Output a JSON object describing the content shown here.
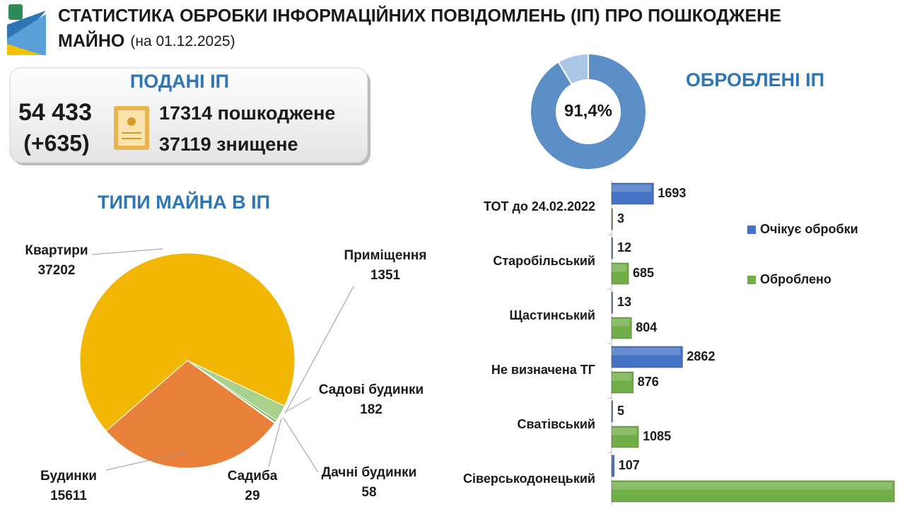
{
  "header": {
    "title_line1": "СТАТИСТИКА ОБРОБКИ ІНФОРМАЦІЙНИХ ПОВІДОМЛЕНЬ (ІП) ПРО ПОШКОДЖЕНЕ",
    "title_line2": "МАЙНО",
    "date": "(на 01.12.2025)"
  },
  "summary": {
    "title": "ПОДАНІ ІП",
    "total": "54 433",
    "delta": "(+635)",
    "damaged": "17314 пошкоджене",
    "destroyed": "37119 знищене"
  },
  "chart_data": [
    {
      "type": "pie",
      "title": "ТИПИ МАЙНА В ІП",
      "categories": [
        "Квартири",
        "Приміщення",
        "Садові будинки",
        "Дачні будинки",
        "Садиба",
        "Будинки"
      ],
      "values": [
        37202,
        1351,
        182,
        58,
        29,
        15611
      ],
      "colors": [
        "#f2b705",
        "#a9d18e",
        "#70ad47",
        "#c5e0b4",
        "#8fbc6b",
        "#e8803a"
      ]
    },
    {
      "type": "donut",
      "title": "ОБРОБЛЕНІ ІП",
      "values": [
        91.4
      ],
      "value_labels": [
        "91,4%"
      ],
      "color": "#5b8ec7"
    },
    {
      "type": "hbar",
      "categories": [
        "ТОТ до 24.02.2022",
        "Старобільський",
        "Щастинський",
        "Не визначена ТГ",
        "Сватівський",
        "Сіверськодонецький"
      ],
      "series": [
        {
          "name": "Очікує обробки",
          "color": "#4472c4",
          "values": [
            1693,
            12,
            13,
            2862,
            5,
            107
          ]
        },
        {
          "name": "Оброблено",
          "color": "#70ad47",
          "values": [
            3,
            685,
            804,
            876,
            1085,
            11400
          ]
        }
      ],
      "xlim": [
        0,
        11400
      ],
      "legend": "right"
    }
  ]
}
